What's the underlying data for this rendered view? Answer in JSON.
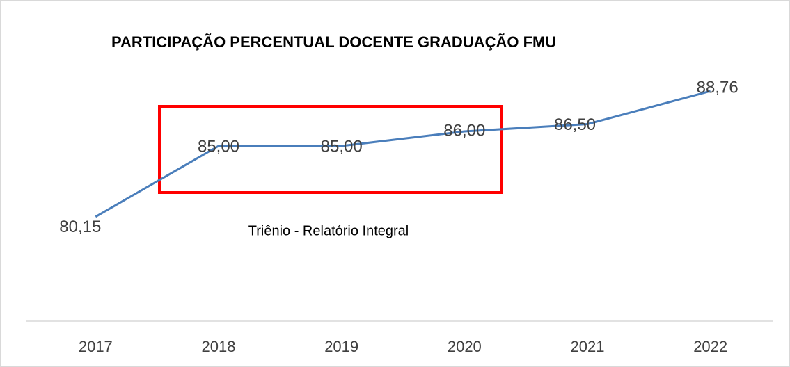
{
  "chart_data": {
    "type": "line",
    "title": "PARTICIPAÇÃO PERCENTUAL DOCENTE GRADUAÇÃO  FMU",
    "categories": [
      "2017",
      "2018",
      "2019",
      "2020",
      "2021",
      "2022"
    ],
    "values": [
      80.15,
      85,
      85,
      86,
      86.5,
      88.76
    ],
    "value_labels": [
      "80,15",
      "85,00",
      "85,00",
      "86,00",
      "86,50",
      "88,76"
    ],
    "color": "#4a7ebb",
    "ylim": [
      73,
      92
    ],
    "annotation": "Triênio - Relatório Integral"
  }
}
